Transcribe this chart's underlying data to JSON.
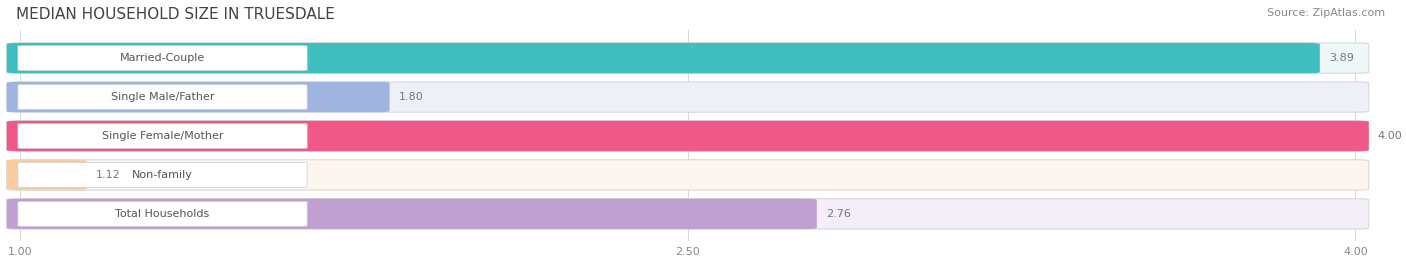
{
  "title": "MEDIAN HOUSEHOLD SIZE IN TRUESDALE",
  "source": "Source: ZipAtlas.com",
  "categories": [
    "Married-Couple",
    "Single Male/Father",
    "Single Female/Mother",
    "Non-family",
    "Total Households"
  ],
  "values": [
    3.89,
    1.8,
    4.0,
    1.12,
    2.76
  ],
  "bar_colors": [
    "#40bfc0",
    "#a0b4e0",
    "#f05888",
    "#f8ceA0",
    "#c0a0d0"
  ],
  "bar_bg_colors": [
    "#eef8f8",
    "#eef0f8",
    "#fceef4",
    "#fdf6ee",
    "#f4eef8"
  ],
  "xmin": 1.0,
  "xmax": 4.0,
  "xticks": [
    1.0,
    2.5,
    4.0
  ],
  "xtick_labels": [
    "1.00",
    "2.50",
    "4.00"
  ],
  "title_fontsize": 11,
  "source_fontsize": 8,
  "label_fontsize": 8,
  "value_fontsize": 8,
  "background_color": "#ffffff"
}
